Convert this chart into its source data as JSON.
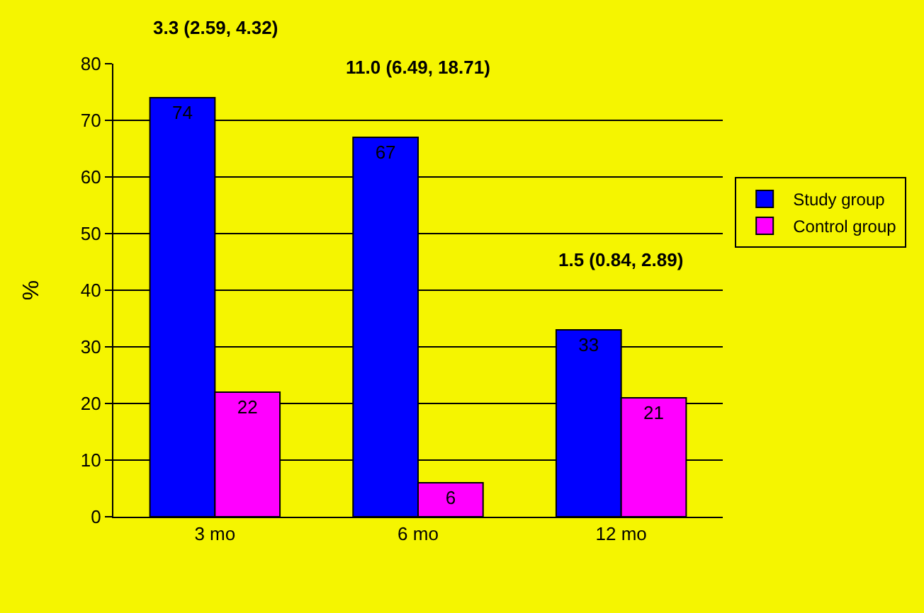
{
  "chart_data": {
    "type": "bar",
    "categories": [
      "3 mo",
      "6 mo",
      "12 mo"
    ],
    "series": [
      {
        "name": "Study group",
        "color": "#0000ff",
        "values": [
          74,
          67,
          33
        ]
      },
      {
        "name": "Control group",
        "color": "#ff00ff",
        "values": [
          22,
          6,
          21
        ]
      }
    ],
    "ylabel": "%",
    "ylim": [
      0,
      80
    ],
    "yticks": [
      0,
      10,
      20,
      30,
      40,
      50,
      60,
      70,
      80
    ],
    "grid": "y",
    "legend": "right",
    "data_labels": true,
    "annotations": [
      "3.3 (2.59, 4.32)",
      "11.0 (6.49, 18.71)",
      "1.5 (0.84, 2.89)"
    ]
  }
}
